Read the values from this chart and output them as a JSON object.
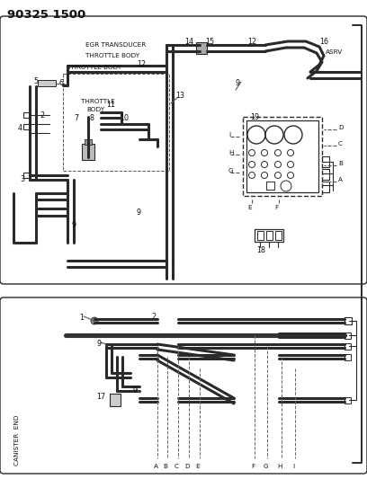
{
  "title": "90325 1500",
  "bg_color": "#ffffff",
  "line_color": "#2a2a2a",
  "text_color": "#111111",
  "fig_width": 4.08,
  "fig_height": 5.33,
  "dpi": 100,
  "top_labels": {
    "egr": "EGR TRANSDUCER",
    "tb1": "THROTTLE BODY",
    "tb2": "THROTTLE BODY",
    "tb3": "THROTTLE",
    "tb3b": "BODY",
    "asrv": "ASRV"
  },
  "bottom_labels": [
    "A",
    "B",
    "C",
    "D",
    "E",
    "F",
    "G",
    "H",
    "I"
  ],
  "canister_end": "CANISTER  END",
  "numbers_top": [
    "1",
    "2",
    "3",
    "4",
    "5",
    "6",
    "7",
    "8",
    "9",
    "10",
    "11",
    "12",
    "12",
    "13",
    "14",
    "15",
    "16",
    "17",
    "18",
    "19"
  ],
  "connector_letters": [
    "A",
    "B",
    "C",
    "D",
    "E",
    "F",
    "G",
    "H",
    "I"
  ]
}
